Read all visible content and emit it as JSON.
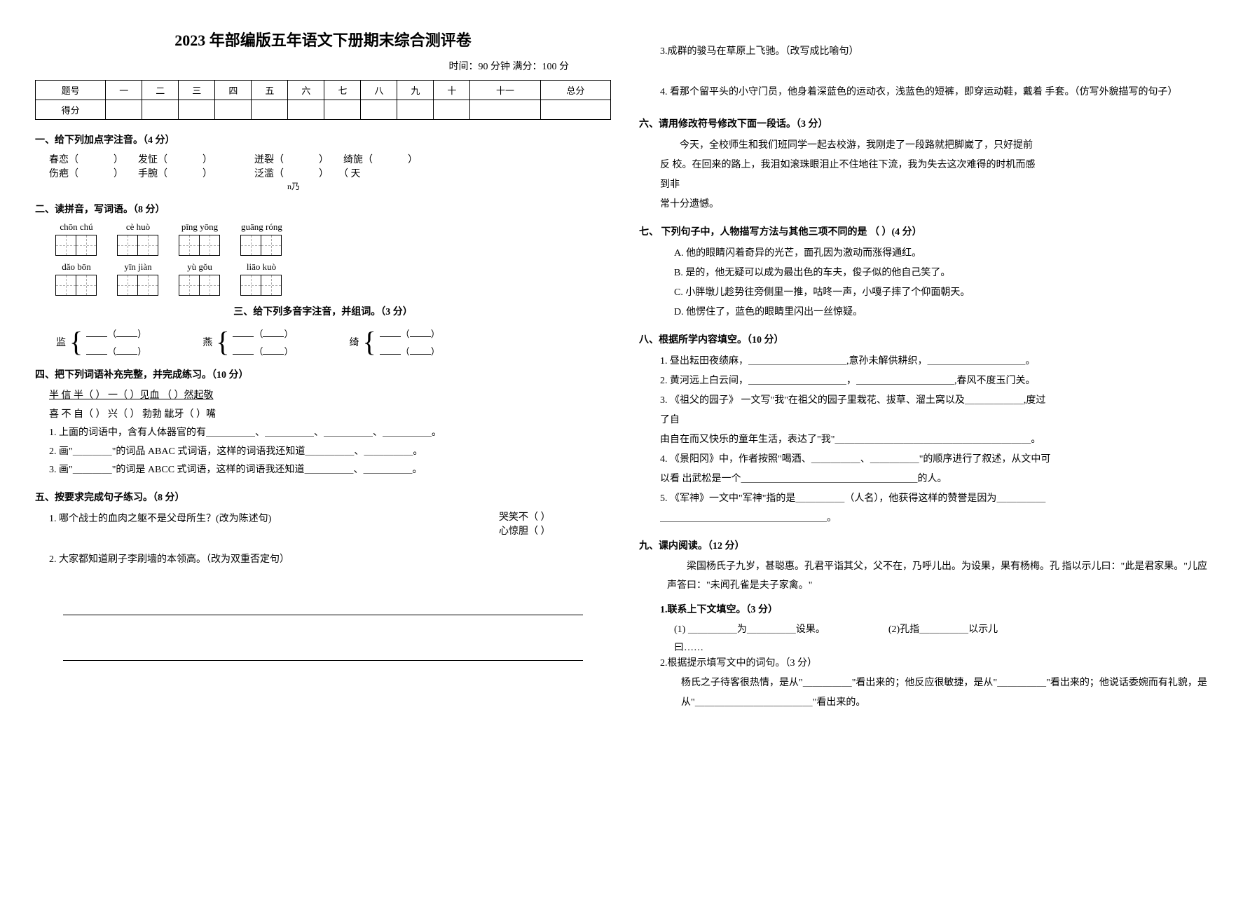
{
  "title": "2023 年部编版五年语文下册期末综合测评卷",
  "subtitle": "时间：90 分钟  满分：100 分",
  "score_headers": [
    "题号",
    "一",
    "二",
    "三",
    "四",
    "五",
    "六",
    "七",
    "八",
    "九",
    "十",
    "十一",
    "总分"
  ],
  "score_row2": "得分",
  "s1": {
    "head": "一、给下列加点字注音。（4 分）",
    "row1": [
      [
        "春恋",
        "发怔"
      ],
      [
        "迸裂",
        "绮旎"
      ]
    ],
    "row2": [
      [
        "伤疤",
        "手腕"
      ],
      [
        "泛滥",
        "（ 天"
      ]
    ],
    "tail": "n乃"
  },
  "s2": {
    "head": "二、读拼音，写词语。（8 分）",
    "pinyin_top": [
      "chōn    chú",
      "cè  huò",
      "pīng    yōng",
      "guāng    róng"
    ],
    "pinyin_bot": [
      "dǎo        bōn",
      "yīn    jiàn",
      "yù    gǒu",
      "liāo    kuò"
    ]
  },
  "s3": {
    "head": "三、给下列多音字注音，并组词。（3 分）",
    "chars": [
      "监",
      "燕",
      "绮"
    ]
  },
  "s4": {
    "head": "四、把下列词语补充完整，并完成练习。（10 分）",
    "lines": [
      "半 信 半（    ）   一（    ）见血    （    ）然起敬",
      "喜 不 自（    ）   兴（    ）    勃勃    龇牙（    ）嘴",
      "1. 上面的词语中，含有人体器官的有＿＿＿＿＿、＿＿＿＿＿、＿＿＿＿＿、＿＿＿＿＿。",
      "2. 画\"＿＿＿＿\"的词品 ABAC  式词语，这样的词语我还知道＿＿＿＿＿、＿＿＿＿＿。",
      "3. 画\"＿＿＿＿\"的词是 ABCC  式词语，这样的词语我还知道＿＿＿＿＿、＿＿＿＿＿。"
    ]
  },
  "s5": {
    "head": "五、按要求完成句子练习。（8 分）",
    "q1": "1. 哪个战士的血肉之躯不是父母所生？(改为陈述句)",
    "q1r1": "哭笑不（    ）",
    "q1r2": "心惊胆（    ）",
    "q2": "2. 大家都知道刷子李刷墙的本领高。（改为双重否定句）",
    "q3": "3.成群的骏马在草原上飞驰。（改写成比喻句）",
    "q4": "4. 看那个留平头的小守门员，他身着深蓝色的运动衣，浅蓝色的短裤，即穿运动鞋，戴着 手套。（仿写外貌描写的句子）"
  },
  "s6": {
    "head": "六、请用修改符号修改下面一段话。（3 分）",
    "p1": "今天，全校师生和我们班同学一起去校游，我刚走了一段路就把脚崴了，只好提前",
    "p2": "反 校。在回来的路上，我泪如滚珠眼泪止不住地往下流，我为失去这次难得的时机而感",
    "p3": "到非",
    "p4": "常十分遗憾。"
  },
  "s7": {
    "head": "七、 下列句子中，人物描写方法与其他三项不同的是    （        ）(4 分）",
    "opts": [
      "A. 他的眼睛闪着奇异的光芒，面孔因为激动而涨得通红。",
      "B. 是的，他无疑可以成为最出色的车夫，俊子似的他自己笑了。",
      "C. 小胖墩儿趁势往旁侧里一推，咕咚一声，小嘎子摔了个仰面朝天。",
      "D. 他愣住了，蓝色的眼睛里闪出一丝惊疑。"
    ]
  },
  "s8": {
    "head": "八、根据所学内容填空。（10 分）",
    "items": [
      "1. 昼出耘田夜绩麻，＿＿＿＿＿＿＿＿＿＿,意孙未解供耕织，＿＿＿＿＿＿＿＿＿＿。",
      "2. 黄河远上白云间，＿＿＿＿＿＿＿＿＿＿，＿＿＿＿＿＿＿＿＿＿,春风不度玉门关。",
      "3.   《祖父的园子》 一文写\"我\"在祖父的园子里栽花、拔草、溜土窝以及＿＿＿＿＿＿,度过",
      "了自",
      "   由自在而又快乐的童年生活，表达了\"我\"＿＿＿＿＿＿＿＿＿＿＿＿＿＿＿＿＿＿＿＿。",
      "4.  《景阳冈》中，作者按照\"喝酒、＿＿＿＿＿、＿＿＿＿＿\"的顺序进行了叙述，从文中可",
      "  以看  出武松是一个＿＿＿＿＿＿＿＿＿＿＿＿＿＿＿＿＿＿的人。",
      "5. 《军神》一文中\"军神\"指的是＿＿＿＿＿（人名），他获得这样的赞誉是因为＿＿＿＿＿",
      "＿＿＿＿＿＿＿＿＿＿＿＿＿＿＿＿＿。"
    ]
  },
  "s9": {
    "head": "九、课内阅读。（12 分）",
    "passage": "梁国杨氏子九岁，甚聪惠。孔君平诣其父，父不在，乃呼儿出。为设果，果有杨梅。孔 指以示儿曰：\"此是君家果。\"儿应声答曰：\"未闻孔雀是夫子家禽。\"",
    "sub1_head": "1.联系上下文填空。（3 分）",
    "sub1_1": "(1) ＿＿＿＿＿为＿＿＿＿＿设果。",
    "sub1_2": "(2)孔指＿＿＿＿＿以示儿",
    "sub1_3": "曰……",
    "sub2_head": "2.根据提示填写文中的词句。（3 分）",
    "sub2_text": "杨氏之子待客很热情，是从\"＿＿＿＿＿\"看出来的；他反应很敏捷，是从\"＿＿＿＿＿\"看出来的；他说话委婉而有礼貌，是从\"＿＿＿＿＿＿＿＿＿＿＿＿\"看出来的。"
  }
}
